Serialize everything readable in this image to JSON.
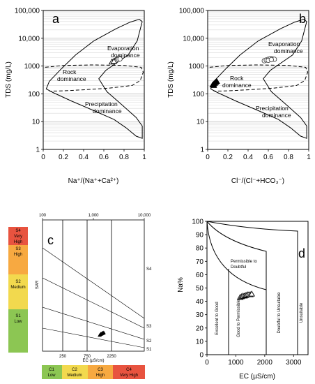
{
  "chart_data": [
    {
      "id": "a",
      "type": "scatter",
      "panel_label": "a",
      "xlabel": "Na⁺/(Na⁺+Ca²⁺)",
      "ylabel": "TDS (mg/L)",
      "xlim": [
        0,
        1
      ],
      "ylim": [
        1,
        100000
      ],
      "yscale": "log",
      "x_ticks": [
        "0",
        "0.2",
        "0.4",
        "0.6",
        "0.8",
        "1"
      ],
      "y_ticks": [
        "1",
        "10",
        "100",
        "1000",
        "10,000",
        "100,000"
      ],
      "region_labels": {
        "evaporation": [
          "Evaporation",
          "dominance"
        ],
        "rock": [
          "Rock",
          "dominance"
        ],
        "precipitation": [
          "Precipitation",
          "dominance"
        ]
      },
      "series": [
        {
          "marker": "circle",
          "points": [
            [
              0.7,
              1500
            ],
            [
              0.72,
              1650
            ],
            [
              0.73,
              1750
            ],
            [
              0.74,
              1850
            ],
            [
              0.75,
              1950
            ],
            [
              0.72,
              1550
            ],
            [
              0.74,
              1700
            ],
            [
              0.76,
              1800
            ],
            [
              0.71,
              1450
            ]
          ]
        },
        {
          "marker": "triangle",
          "points": [
            [
              0.68,
              1400
            ],
            [
              0.7,
              1480
            ]
          ]
        }
      ]
    },
    {
      "id": "b",
      "type": "scatter",
      "panel_label": "b",
      "xlabel": "Cl⁻/(Cl⁻+HCO₃⁻)",
      "ylabel": "TDS (mg/L)",
      "xlim": [
        0,
        1
      ],
      "ylim": [
        1,
        100000
      ],
      "yscale": "log",
      "x_ticks": [
        "0",
        "0.2",
        "0.4",
        "0.6",
        "0.8",
        "1"
      ],
      "y_ticks": [
        "1",
        "10",
        "100",
        "1000",
        "10,000",
        "100,000"
      ],
      "region_labels": {
        "evaporation": [
          "Evaporation",
          "dominance"
        ],
        "rock": [
          "Rock",
          "dominance"
        ],
        "precipitation": [
          "Precipitation",
          "dominance"
        ]
      },
      "series": [
        {
          "marker": "circle",
          "points": [
            [
              0.56,
              1550
            ],
            [
              0.58,
              1650
            ],
            [
              0.6,
              1750
            ],
            [
              0.62,
              1850
            ],
            [
              0.64,
              1800
            ],
            [
              0.66,
              1750
            ],
            [
              0.6,
              1600
            ],
            [
              0.63,
              1700
            ]
          ]
        },
        {
          "marker": "triangle",
          "points": [
            [
              0.05,
              210
            ],
            [
              0.06,
              225
            ],
            [
              0.07,
              240
            ],
            [
              0.08,
              260
            ],
            [
              0.09,
              280
            ],
            [
              0.06,
              200
            ]
          ]
        }
      ]
    },
    {
      "id": "c",
      "type": "scatter",
      "panel_label": "c",
      "xlabel": "EC (µS/cm)",
      "ylabel": "SAR",
      "xscale": "log",
      "xlim": [
        100,
        10000
      ],
      "ylim": [
        0,
        32
      ],
      "top_ticks": [
        "100",
        "1,000",
        "10,000"
      ],
      "bottom_ticks": [
        "250",
        "750",
        "2250"
      ],
      "line_labels": [
        "S4",
        "S3",
        "S2",
        "S1"
      ],
      "s_classes": [
        {
          "code": "S4",
          "words": [
            "Very",
            "High"
          ],
          "color": "#e8533f"
        },
        {
          "code": "S3",
          "words": [
            "High"
          ],
          "color": "#f7a941"
        },
        {
          "code": "S2",
          "words": [
            "Medium"
          ],
          "color": "#f2d94e"
        },
        {
          "code": "S1",
          "words": [
            "Low"
          ],
          "color": "#8cc653"
        }
      ],
      "c_classes": [
        {
          "code": "C1",
          "words": [
            "Low"
          ],
          "color": "#8cc653"
        },
        {
          "code": "C2",
          "words": [
            "Medium"
          ],
          "color": "#f2d94e"
        },
        {
          "code": "C3",
          "words": [
            "High"
          ],
          "color": "#f7a941"
        },
        {
          "code": "C4",
          "words": [
            "Very High"
          ],
          "color": "#e8533f"
        }
      ],
      "series": [
        {
          "marker": "triangle",
          "points": [
            [
              1250,
              3.9
            ],
            [
              1300,
              4.1
            ],
            [
              1350,
              4.2
            ],
            [
              1400,
              4.3
            ],
            [
              1450,
              4.4
            ]
          ]
        },
        {
          "marker": "circle",
          "points": [
            [
              1320,
              4.2
            ],
            [
              1420,
              4.4
            ],
            [
              1500,
              4.5
            ]
          ]
        }
      ]
    },
    {
      "id": "d",
      "type": "scatter",
      "panel_label": "d",
      "xlabel": "EC (µS/cm)",
      "ylabel": "Na%",
      "xlim": [
        0,
        3500
      ],
      "ylim": [
        0,
        100
      ],
      "x_ticks": [
        "0",
        "1000",
        "2000",
        "3000"
      ],
      "y_ticks": [
        "0",
        "10",
        "20",
        "30",
        "40",
        "50",
        "60",
        "70",
        "80",
        "90",
        "100"
      ],
      "region_labels": {
        "permissible": [
          "Permissible to",
          "Doubtful"
        ],
        "excellent": "Excellent to Good",
        "good": "Good to Permissible",
        "doubtful": "Doubtful to Unsuitable",
        "unsuitable": "Unsuitable"
      },
      "series": [
        {
          "marker": "triangle",
          "points": [
            [
              1150,
              43
            ],
            [
              1200,
              43.5
            ],
            [
              1250,
              44
            ],
            [
              1300,
              44
            ],
            [
              1350,
              44.5
            ],
            [
              1400,
              45
            ],
            [
              1450,
              45
            ],
            [
              1500,
              45
            ],
            [
              1550,
              45.5
            ]
          ]
        }
      ]
    }
  ]
}
